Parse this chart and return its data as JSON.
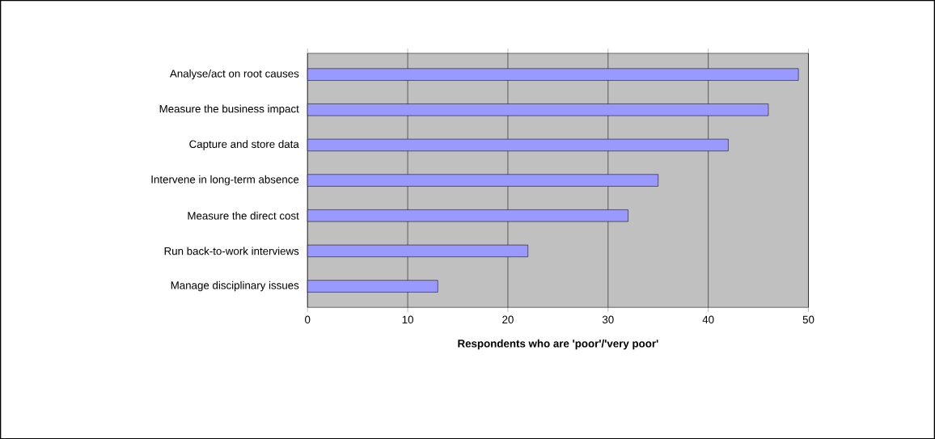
{
  "chart_data": {
    "type": "bar",
    "orientation": "horizontal",
    "xlabel": "Respondents who are 'poor'/'very poor'",
    "categories": [
      "Analyse/act on root causes",
      "Measure the business impact",
      "Capture and store data",
      "Intervene in long-term absence",
      "Measure the direct cost",
      "Run back-to-work interviews",
      "Manage disciplinary issues"
    ],
    "values": [
      49,
      46,
      42,
      35,
      32,
      22,
      13
    ],
    "color": "#9999ff",
    "xlim": [
      0,
      50
    ],
    "xticks": [
      0,
      10,
      20,
      30,
      40,
      50
    ],
    "grid": "x"
  }
}
